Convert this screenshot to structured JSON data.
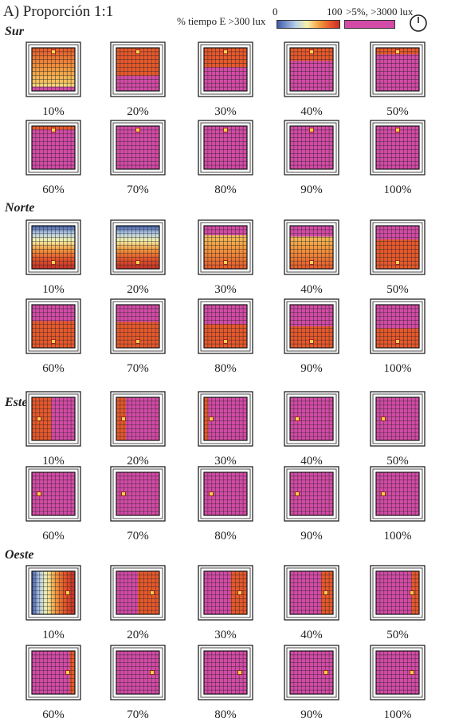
{
  "title": "A) Proporción 1:1",
  "legend": {
    "label": "% tiempo E >300 lux",
    "min": "0",
    "max": "100",
    "pink_label": ">5%, >3000 lux",
    "colors": {
      "low": "#3d5aa8",
      "light_blue": "#b9d0ea",
      "yellow": "#f7f2a8",
      "orange": "#f29a3e",
      "dark_orange": "#e8582a",
      "red": "#c62f28",
      "pink": "#d44aa7"
    },
    "icon": "clock-icon"
  },
  "sections": [
    {
      "name": "Sur",
      "orientation": "south",
      "items": [
        {
          "label": "10%",
          "pink": 0.1
        },
        {
          "label": "20%",
          "pink": 0.35
        },
        {
          "label": "30%",
          "pink": 0.55
        },
        {
          "label": "40%",
          "pink": 0.7
        },
        {
          "label": "50%",
          "pink": 0.85
        },
        {
          "label": "60%",
          "pink": 0.92
        },
        {
          "label": "70%",
          "pink": 1.0
        },
        {
          "label": "80%",
          "pink": 1.0
        },
        {
          "label": "90%",
          "pink": 1.0
        },
        {
          "label": "100%",
          "pink": 1.0
        }
      ]
    },
    {
      "name": "Norte",
      "orientation": "north",
      "items": [
        {
          "label": "10%",
          "pink": 0.0
        },
        {
          "label": "20%",
          "pink": 0.0
        },
        {
          "label": "30%",
          "pink": 0.22
        },
        {
          "label": "40%",
          "pink": 0.25
        },
        {
          "label": "50%",
          "pink": 0.32
        },
        {
          "label": "60%",
          "pink": 0.38
        },
        {
          "label": "70%",
          "pink": 0.4
        },
        {
          "label": "80%",
          "pink": 0.45
        },
        {
          "label": "90%",
          "pink": 0.5
        },
        {
          "label": "100%",
          "pink": 0.55
        }
      ]
    },
    {
      "name": "Este",
      "orientation": "east",
      "items": [
        {
          "label": "10%",
          "pink": 0.55
        },
        {
          "label": "20%",
          "pink": 0.78
        },
        {
          "label": "30%",
          "pink": 0.9
        },
        {
          "label": "40%",
          "pink": 1.0
        },
        {
          "label": "50%",
          "pink": 1.0
        },
        {
          "label": "60%",
          "pink": 1.0
        },
        {
          "label": "70%",
          "pink": 1.0
        },
        {
          "label": "80%",
          "pink": 1.0
        },
        {
          "label": "90%",
          "pink": 1.0
        },
        {
          "label": "100%",
          "pink": 1.0
        }
      ]
    },
    {
      "name": "Oeste",
      "orientation": "west",
      "items": [
        {
          "label": "10%",
          "pink": 0.0
        },
        {
          "label": "20%",
          "pink": 0.5
        },
        {
          "label": "30%",
          "pink": 0.62
        },
        {
          "label": "40%",
          "pink": 0.72
        },
        {
          "label": "50%",
          "pink": 0.82
        },
        {
          "label": "60%",
          "pink": 0.88
        },
        {
          "label": "70%",
          "pink": 1.0
        },
        {
          "label": "80%",
          "pink": 1.0
        },
        {
          "label": "90%",
          "pink": 1.0
        },
        {
          "label": "100%",
          "pink": 1.0
        }
      ]
    }
  ]
}
